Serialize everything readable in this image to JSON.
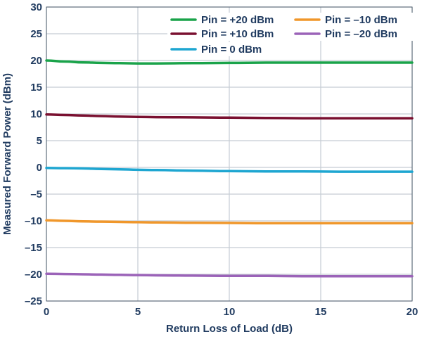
{
  "chart_data": {
    "type": "line",
    "title": "",
    "xlabel": "Return Loss of Load (dB)",
    "ylabel": "Measured Forward Power (dBm)",
    "xlim": [
      0,
      20
    ],
    "ylim": [
      -25,
      30
    ],
    "xticks": [
      0,
      5,
      10,
      15,
      20
    ],
    "yticks": [
      30,
      25,
      20,
      15,
      10,
      5,
      0,
      -5,
      -10,
      -15,
      -20,
      -25
    ],
    "xtick_labels": [
      "0",
      "5",
      "10",
      "15",
      "20"
    ],
    "ytick_labels": [
      "30",
      "25",
      "20",
      "15",
      "10",
      "5",
      "0",
      "–5",
      "–10",
      "–15",
      "–20",
      "–25"
    ],
    "grid": true,
    "legend_position": "top-right",
    "x": [
      0,
      1,
      2,
      3,
      4,
      5,
      6,
      8,
      10,
      12,
      14,
      16,
      18,
      20
    ],
    "series": [
      {
        "name": "Pin = +20 dBm",
        "color": "#1aa34a",
        "values": [
          20.0,
          19.8,
          19.65,
          19.55,
          19.5,
          19.45,
          19.45,
          19.5,
          19.55,
          19.6,
          19.6,
          19.6,
          19.6,
          19.6
        ]
      },
      {
        "name": "Pin = +10 dBm",
        "color": "#7a1030",
        "values": [
          9.9,
          9.8,
          9.7,
          9.6,
          9.5,
          9.45,
          9.4,
          9.35,
          9.3,
          9.25,
          9.2,
          9.2,
          9.2,
          9.2
        ]
      },
      {
        "name": "Pin = 0 dBm",
        "color": "#1ea6d1",
        "values": [
          -0.1,
          -0.15,
          -0.2,
          -0.3,
          -0.35,
          -0.45,
          -0.5,
          -0.6,
          -0.7,
          -0.75,
          -0.75,
          -0.8,
          -0.8,
          -0.8
        ]
      },
      {
        "name": "Pin = –10 dBm",
        "color": "#f0972b",
        "values": [
          -9.9,
          -10.0,
          -10.1,
          -10.15,
          -10.2,
          -10.25,
          -10.3,
          -10.35,
          -10.4,
          -10.45,
          -10.45,
          -10.45,
          -10.45,
          -10.45
        ]
      },
      {
        "name": "Pin = –20 dBm",
        "color": "#9b63b8",
        "values": [
          -19.9,
          -19.95,
          -20.0,
          -20.05,
          -20.1,
          -20.15,
          -20.2,
          -20.25,
          -20.3,
          -20.3,
          -20.35,
          -20.35,
          -20.35,
          -20.35
        ]
      }
    ],
    "legend_layout": [
      [
        "Pin = +20 dBm",
        "Pin = –10 dBm"
      ],
      [
        "Pin = +10 dBm",
        "Pin = –20 dBm"
      ],
      [
        "Pin = 0 dBm"
      ]
    ]
  }
}
